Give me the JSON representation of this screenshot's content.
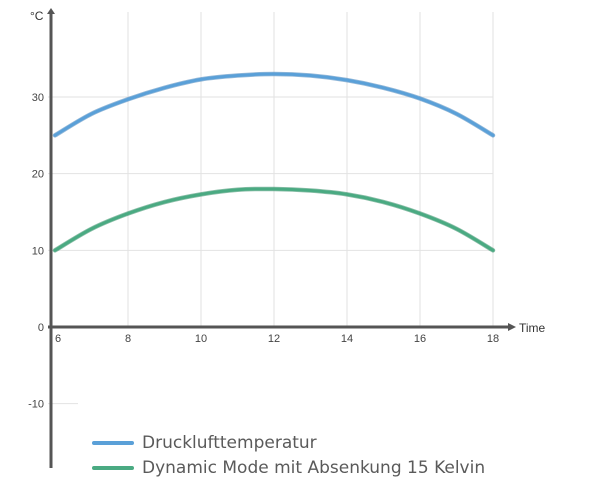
{
  "chart_data": {
    "type": "line",
    "ylabel": "°C",
    "xlabel": "Time",
    "xlim": [
      6,
      18
    ],
    "ylim": [
      -15,
      40
    ],
    "x_ticks": [
      6,
      8,
      10,
      12,
      14,
      16,
      18
    ],
    "y_ticks": [
      -10,
      0,
      10,
      20,
      30
    ],
    "grid": true,
    "legend_position": "bottom-left",
    "series": [
      {
        "name": "Drucklufttemperatur",
        "color": "#5aa0d8",
        "x": [
          6,
          7,
          8,
          9,
          10,
          11,
          12,
          13,
          14,
          15,
          16,
          17,
          18
        ],
        "y": [
          25,
          27.8,
          29.7,
          31.2,
          32.3,
          32.8,
          33,
          32.8,
          32.2,
          31.2,
          29.8,
          27.8,
          25
        ]
      },
      {
        "name": "Dynamic Mode mit Absenkung 15 Kelvin",
        "color": "#4aaa82",
        "x": [
          6,
          7,
          8,
          9,
          10,
          11,
          12,
          13,
          14,
          15,
          16,
          17,
          18
        ],
        "y": [
          10,
          12.8,
          14.8,
          16.3,
          17.3,
          17.9,
          18,
          17.8,
          17.3,
          16.3,
          14.8,
          12.8,
          10
        ]
      }
    ]
  }
}
